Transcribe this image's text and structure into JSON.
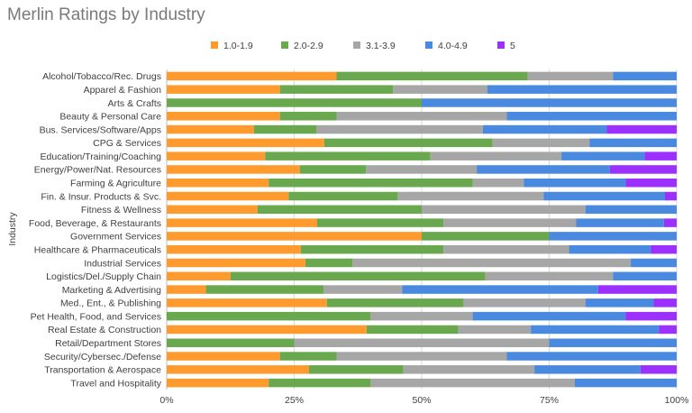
{
  "chart_data": {
    "type": "bar",
    "orientation": "horizontal",
    "stacked": "100%",
    "title": "Merlin Ratings by Industry",
    "ylabel": "Industry",
    "xlabel": "",
    "xlim": [
      0,
      100
    ],
    "x_ticks": [
      "0%",
      "25%",
      "50%",
      "75%",
      "100%"
    ],
    "grid": "vertical",
    "legend_position": "top",
    "categories": [
      "Alcohol/Tobacco/Rec. Drugs",
      "Apparel & Fashion",
      "Arts & Crafts",
      "Beauty & Personal Care",
      "Bus. Services/Software/Apps",
      "CPG & Services",
      "Education/Training/Coaching",
      "Energy/Power/Nat. Resources",
      "Farming & Agriculture",
      "Fin. & Insur. Products & Svc.",
      "Fitness & Wellness",
      "Food, Beverage, & Restaurants",
      "Government Services",
      "Healthcare & Pharmaceuticals",
      "Industrial Services",
      "Logistics/Del./Supply Chain",
      "Marketing & Advertising",
      "Med., Ent., & Publishing",
      "Pet Health, Food, and Services",
      "Real Estate & Construction",
      "Retail/Department Stores",
      "Security/Cybersec./Defense",
      "Transportation & Aerospace",
      "Travel and Hospitality"
    ],
    "series": [
      {
        "name": "1.0-1.9",
        "color": "#FF9A2E",
        "values": [
          33.3,
          22.2,
          0,
          22.2,
          17.1,
          30.9,
          19.3,
          26.1,
          20,
          23.9,
          17.8,
          29.5,
          50,
          26.3,
          27.2,
          12.5,
          7.7,
          31.4,
          0,
          39.2,
          0,
          22.2,
          27.9,
          20
        ]
      },
      {
        "name": "2.0-2.9",
        "color": "#6AA84F",
        "values": [
          37.5,
          22.2,
          50,
          11.1,
          12.3,
          33.0,
          32.4,
          13.0,
          40,
          21.4,
          32.2,
          24.8,
          25,
          28.0,
          9.2,
          50,
          23.1,
          26.8,
          40,
          18.0,
          25,
          11.1,
          18.5,
          20
        ]
      },
      {
        "name": "3.1-3.9",
        "color": "#A6A6A6",
        "values": [
          16.7,
          18.5,
          0,
          33.4,
          32.6,
          19.0,
          25.7,
          21.7,
          10,
          28.6,
          32.1,
          26.0,
          0,
          24.6,
          54.6,
          25,
          15.4,
          23.9,
          20,
          14.2,
          50,
          33.4,
          25.7,
          40
        ]
      },
      {
        "name": "4.0-4.9",
        "color": "#4A89E0",
        "values": [
          12.5,
          37.1,
          50,
          33.3,
          24.3,
          17.1,
          16.3,
          26.1,
          20,
          23.8,
          17.9,
          17.2,
          25,
          16.0,
          9.0,
          12.5,
          38.4,
          13.4,
          30,
          25.1,
          25,
          33.3,
          20.8,
          20
        ]
      },
      {
        "name": "5",
        "color": "#9B30FF",
        "values": [
          0,
          0,
          0,
          0,
          13.7,
          0,
          6.3,
          13.1,
          10,
          2.3,
          0,
          2.5,
          0,
          5.1,
          0,
          0,
          15.4,
          4.5,
          10,
          3.5,
          0,
          0,
          7.1,
          0
        ]
      }
    ]
  }
}
